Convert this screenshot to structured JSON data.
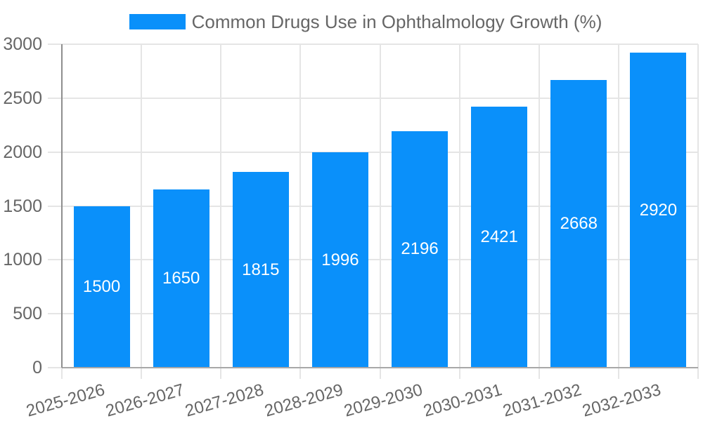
{
  "chart_data": {
    "type": "bar",
    "title": "Common Drugs Use in Ophthalmology Growth (%)",
    "categories": [
      "2025-2026",
      "2026-2027",
      "2027-2028",
      "2028-2029",
      "2029-2030",
      "2030-2031",
      "2031-2032",
      "2032-2033"
    ],
    "series": [
      {
        "name": "Common Drugs Use in Ophthalmology Growth (%)",
        "values": [
          1500,
          1650,
          1815,
          1996,
          2196,
          2421,
          2668,
          2920
        ]
      }
    ],
    "value_labels": [
      "1500",
      "1650",
      "1815",
      "1996",
      "2196",
      "2421",
      "2668",
      "2920"
    ],
    "xlabel": "",
    "ylabel": "",
    "ylim": [
      0,
      3000
    ],
    "yticks": [
      0,
      500,
      1000,
      1500,
      2000,
      2500,
      3000
    ],
    "grid": true,
    "legend_position": "top",
    "x_tick_rotation_deg": -16,
    "colors": {
      "bar": "#0a90fa",
      "grid_line": "#e5e5e5",
      "axis_line_y": "#8e8e8e",
      "axis_line_x": "#a8a8a8",
      "tick_label": "#666666",
      "value_label": "#ffffff",
      "background": "#ffffff"
    }
  }
}
